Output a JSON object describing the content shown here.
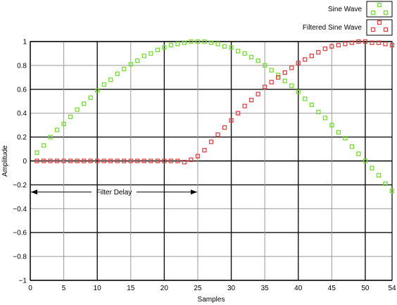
{
  "chart_data": {
    "type": "scatter",
    "xlabel": "Samples",
    "ylabel": "Amplitude",
    "xlim": [
      0,
      54
    ],
    "ylim": [
      -1,
      1
    ],
    "x_ticks": [
      0,
      5,
      10,
      15,
      20,
      25,
      30,
      35,
      40,
      45,
      50,
      54
    ],
    "y_ticks": [
      -1,
      -0.8,
      -0.6,
      -0.4,
      -0.2,
      0,
      0.2,
      0.4,
      0.6,
      0.8,
      1
    ],
    "y_tick_labels": [
      "−1",
      "−0.8",
      "−0.6",
      "−0.4",
      "−0.2",
      "0",
      "0.2",
      "0.4",
      "0.6",
      "0.8",
      "1"
    ],
    "grid": true,
    "legend_position": "top-right, outside plot",
    "series": [
      {
        "name": "Sine Wave",
        "color": "#77dd33",
        "marker": "square",
        "x": [
          1,
          2,
          3,
          4,
          5,
          6,
          7,
          8,
          9,
          10,
          11,
          12,
          13,
          14,
          15,
          16,
          17,
          18,
          19,
          20,
          21,
          22,
          23,
          24,
          25,
          26,
          27,
          28,
          29,
          30,
          31,
          32,
          33,
          34,
          35,
          36,
          37,
          38,
          39,
          40,
          41,
          42,
          43,
          44,
          45,
          46,
          47,
          48,
          49,
          50,
          51,
          52,
          53,
          54
        ],
        "values": [
          0.07,
          0.13,
          0.2,
          0.26,
          0.31,
          0.37,
          0.43,
          0.48,
          0.53,
          0.59,
          0.64,
          0.68,
          0.73,
          0.77,
          0.81,
          0.84,
          0.88,
          0.9,
          0.93,
          0.95,
          0.97,
          0.98,
          0.99,
          1.0,
          1.0,
          1.0,
          0.99,
          0.98,
          0.96,
          0.95,
          0.92,
          0.9,
          0.87,
          0.84,
          0.8,
          0.76,
          0.72,
          0.67,
          0.63,
          0.58,
          0.52,
          0.47,
          0.41,
          0.36,
          0.3,
          0.24,
          0.19,
          0.12,
          0.06,
          0.0,
          -0.06,
          -0.12,
          -0.19,
          -0.25
        ]
      },
      {
        "name": "Filtered Sine Wave",
        "color": "#dd4444",
        "marker": "square",
        "x": [
          1,
          2,
          3,
          4,
          5,
          6,
          7,
          8,
          9,
          10,
          11,
          12,
          13,
          14,
          15,
          16,
          17,
          18,
          19,
          20,
          21,
          22,
          23,
          24,
          25,
          26,
          27,
          28,
          29,
          30,
          31,
          32,
          33,
          34,
          35,
          36,
          37,
          38,
          39,
          40,
          41,
          42,
          43,
          44,
          45,
          46,
          47,
          48,
          49,
          50,
          51,
          52,
          53,
          54
        ],
        "values": [
          0,
          0,
          0,
          0,
          0,
          0,
          0,
          0,
          0,
          0,
          0,
          0,
          0,
          0,
          0,
          0,
          0,
          0,
          0,
          0,
          0,
          0,
          -0.01,
          0.01,
          0.04,
          0.09,
          0.16,
          0.22,
          0.28,
          0.34,
          0.4,
          0.46,
          0.51,
          0.56,
          0.62,
          0.66,
          0.7,
          0.74,
          0.78,
          0.82,
          0.85,
          0.88,
          0.91,
          0.94,
          0.96,
          0.97,
          0.98,
          0.99,
          1.0,
          1.0,
          0.99,
          0.99,
          0.98,
          0.97
        ]
      }
    ],
    "annotation": {
      "text": "Filter Delay",
      "x_start": 0,
      "x_end": 25,
      "y": -0.26
    }
  }
}
